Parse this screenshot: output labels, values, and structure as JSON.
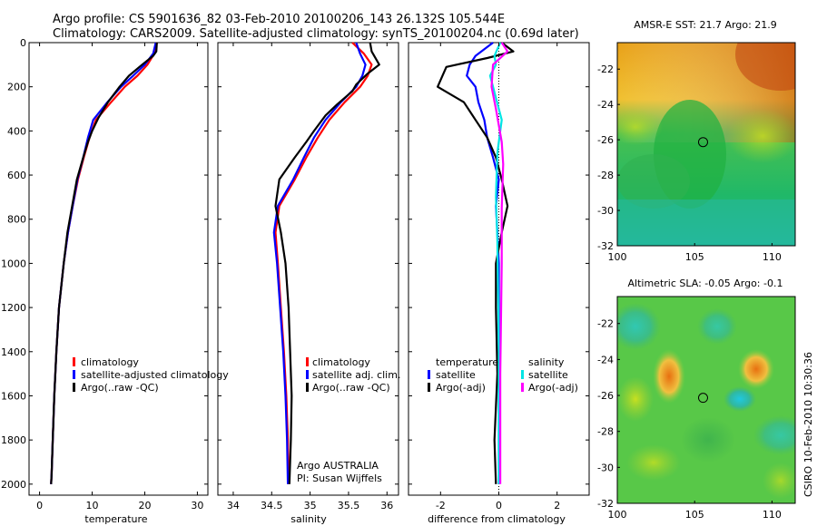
{
  "titles": {
    "line1": "Argo profile: CS 5901636_82 03-Feb-2010 20100206_143 26.132S 105.544E",
    "line2": "Climatology: CARS2009. Satellite-adjusted climatology: synTS_20100204.nc (0.69d later)"
  },
  "colors": {
    "climatology": "#ff0000",
    "satellite": "#0000ff",
    "argo": "#000000",
    "salinity_satellite": "#00e5e5",
    "salinity_argo": "#ff00ff"
  },
  "chart_data": [
    {
      "type": "line",
      "id": "temperature",
      "xlabel": "temperature",
      "ylabel": "",
      "xlim": [
        -2,
        32
      ],
      "ylim": [
        2050,
        0
      ],
      "xticks": [
        0,
        10,
        20,
        30
      ],
      "yticks": [
        0,
        200,
        400,
        600,
        800,
        1000,
        1200,
        1400,
        1600,
        1800,
        2000
      ],
      "legend": [
        "climatology",
        "satellite-adjusted climatology",
        "Argo(..raw -QC)"
      ],
      "series": [
        {
          "name": "climatology",
          "color": "#ff0000",
          "x": [
            22.3,
            21.8,
            20.5,
            18.6,
            16.2,
            13.6,
            10.7,
            9.5,
            8.4,
            7.3,
            6.3,
            5.4,
            4.6,
            3.7,
            3.2,
            2.8,
            2.5,
            2.3,
            2.2
          ],
          "y": [
            0,
            50,
            100,
            150,
            200,
            270,
            350,
            430,
            520,
            620,
            740,
            860,
            1000,
            1200,
            1400,
            1600,
            1800,
            1950,
            2000
          ]
        },
        {
          "name": "satellite",
          "color": "#0000ff",
          "x": [
            22.1,
            21.6,
            20.0,
            17.8,
            15.5,
            12.9,
            10.2,
            9.2,
            8.3,
            7.2,
            6.3,
            5.4,
            4.6,
            3.7,
            3.2,
            2.8,
            2.5,
            2.3,
            2.2
          ],
          "y": [
            0,
            50,
            100,
            150,
            200,
            270,
            350,
            430,
            520,
            620,
            740,
            860,
            1000,
            1200,
            1400,
            1600,
            1800,
            1950,
            2000
          ]
        },
        {
          "name": "Argo",
          "color": "#000000",
          "x": [
            22.3,
            22.2,
            21.6,
            19.5,
            17.0,
            15.2,
            13.0,
            11.2,
            10.0,
            9.2,
            8.3,
            7.1,
            6.2,
            5.3,
            4.6,
            3.7,
            3.2,
            2.8,
            2.5,
            2.3,
            2.2
          ],
          "y": [
            0,
            40,
            60,
            100,
            150,
            200,
            270,
            340,
            400,
            450,
            520,
            620,
            740,
            860,
            1000,
            1200,
            1400,
            1600,
            1800,
            1950,
            2000
          ]
        }
      ]
    },
    {
      "type": "line",
      "id": "salinity",
      "xlabel": "salinity",
      "xlim": [
        33.8,
        36.15
      ],
      "ylim": [
        2050,
        0
      ],
      "xticks": [
        34,
        34.5,
        35,
        35.5,
        36
      ],
      "xticklabels": [
        "34",
        "34.5",
        "35",
        "35.5",
        "36"
      ],
      "legend": [
        "climatology",
        "satellite adj. clim.",
        "Argo(..raw -QC)"
      ],
      "annotations": [
        "Argo AUSTRALIA",
        "PI: Susan Wijffels"
      ],
      "series": [
        {
          "name": "climatology",
          "color": "#ff0000",
          "x": [
            35.55,
            35.7,
            35.8,
            35.75,
            35.65,
            35.45,
            35.25,
            35.1,
            34.95,
            34.8,
            34.6,
            34.55,
            34.58,
            34.62,
            34.66,
            34.69,
            34.71,
            34.72
          ],
          "y": [
            0,
            50,
            100,
            150,
            200,
            270,
            350,
            430,
            520,
            620,
            740,
            860,
            1000,
            1200,
            1400,
            1600,
            1800,
            2000
          ]
        },
        {
          "name": "satellite",
          "color": "#0000ff",
          "x": [
            35.6,
            35.65,
            35.72,
            35.68,
            35.6,
            35.4,
            35.2,
            35.05,
            34.92,
            34.78,
            34.58,
            34.53,
            34.57,
            34.61,
            34.65,
            34.68,
            34.7,
            34.71
          ],
          "y": [
            0,
            50,
            100,
            150,
            200,
            270,
            350,
            430,
            520,
            620,
            740,
            860,
            1000,
            1200,
            1400,
            1600,
            1800,
            2000
          ]
        },
        {
          "name": "Argo",
          "color": "#000000",
          "x": [
            35.78,
            35.8,
            35.9,
            35.75,
            35.6,
            35.55,
            35.35,
            35.2,
            35.05,
            34.95,
            34.8,
            34.6,
            34.55,
            34.62,
            34.68,
            34.72,
            34.74,
            34.76,
            34.75,
            34.73
          ],
          "y": [
            0,
            40,
            100,
            140,
            190,
            220,
            280,
            330,
            400,
            450,
            520,
            620,
            740,
            860,
            1000,
            1200,
            1400,
            1600,
            1800,
            2000
          ]
        }
      ]
    },
    {
      "type": "line",
      "id": "difference",
      "xlabel": "difference from climatology",
      "xlim": [
        -3.1,
        3.1
      ],
      "ylim": [
        2050,
        0
      ],
      "xticks": [
        -2,
        0,
        2
      ],
      "legend_groups": [
        {
          "title": "temperature",
          "entries": [
            "satellite",
            "Argo(-adj)"
          ]
        },
        {
          "title": "salinity",
          "entries": [
            "satellite",
            "Argo(-adj)"
          ]
        }
      ],
      "series": [
        {
          "name": "temperature satellite",
          "color": "#0000ff",
          "x": [
            -0.2,
            -0.8,
            -1.0,
            -1.1,
            -0.8,
            -0.7,
            -0.5,
            -0.4,
            -0.2,
            0,
            -0.1,
            -0.05,
            0,
            0,
            0
          ],
          "y": [
            0,
            60,
            100,
            150,
            200,
            270,
            350,
            430,
            520,
            620,
            740,
            860,
            1000,
            1500,
            2000
          ]
        },
        {
          "name": "temperature Argo",
          "color": "#000000",
          "x": [
            0.1,
            0.5,
            -0.4,
            -1.8,
            -2.1,
            -1.2,
            -0.8,
            -0.4,
            -0.1,
            0.1,
            0.3,
            0.1,
            -0.1,
            -0.1,
            -0.05,
            -0.15,
            -0.1
          ],
          "y": [
            0,
            40,
            70,
            110,
            200,
            270,
            350,
            430,
            520,
            620,
            740,
            860,
            1000,
            1200,
            1500,
            1800,
            2000
          ]
        },
        {
          "name": "salinity satellite",
          "color": "#00e5e5",
          "x": [
            0.05,
            -0.15,
            -0.1,
            -0.3,
            -0.2,
            0.1,
            -0.05,
            -0.1,
            -0.05,
            0,
            0
          ],
          "y": [
            0,
            60,
            100,
            150,
            200,
            350,
            500,
            700,
            900,
            1400,
            2000
          ]
        },
        {
          "name": "salinity Argo",
          "color": "#ff00ff",
          "x": [
            0.1,
            0.3,
            -0.2,
            -0.25,
            -0.1,
            0.1,
            0.15,
            0.1,
            0.1,
            0.05,
            0.05
          ],
          "y": [
            0,
            40,
            100,
            200,
            300,
            450,
            550,
            750,
            1000,
            1500,
            2000
          ]
        }
      ]
    },
    {
      "type": "heatmap",
      "id": "sst-map",
      "title": "AMSR-E SST: 21.7 Argo: 21.9",
      "xlim": [
        100,
        111.5
      ],
      "ylim": [
        -32,
        -20.5
      ],
      "xticks": [
        100,
        105,
        110
      ],
      "yticks": [
        -22,
        -24,
        -26,
        -28,
        -30,
        -32
      ],
      "marker": {
        "lon": 105.544,
        "lat": -26.132
      }
    },
    {
      "type": "heatmap",
      "id": "sla-map",
      "title": "Altimetric SLA: -0.05 Argo: -0.1",
      "xlim": [
        100,
        111.5
      ],
      "ylim": [
        -32,
        -20.5
      ],
      "xticks": [
        100,
        105,
        110
      ],
      "yticks": [
        -22,
        -24,
        -26,
        -28,
        -30,
        -32
      ],
      "marker": {
        "lon": 105.544,
        "lat": -26.132
      }
    }
  ],
  "footer": {
    "credit": "CSIRO 10-Feb-2010 10:30:36"
  }
}
